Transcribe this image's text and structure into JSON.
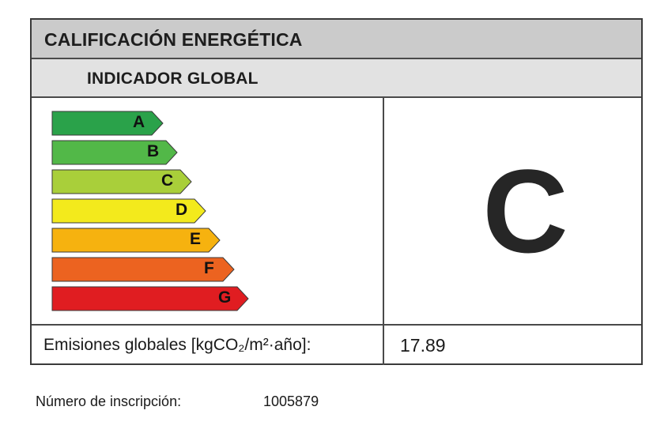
{
  "header": {
    "title": "CALIFICACIÓN ENERGÉTICA",
    "subtitle": "INDICADOR GLOBAL"
  },
  "scale": [
    {
      "letter": "A",
      "color": "#2aa24a"
    },
    {
      "letter": "B",
      "color": "#52b848"
    },
    {
      "letter": "C",
      "color": "#a9cf3a"
    },
    {
      "letter": "D",
      "color": "#f3ea1c"
    },
    {
      "letter": "E",
      "color": "#f6b20f"
    },
    {
      "letter": "F",
      "color": "#ec6320"
    },
    {
      "letter": "G",
      "color": "#e01d21"
    }
  ],
  "rating": {
    "letter": "C"
  },
  "emissions": {
    "label": "Emisiones globales  [kgCO₂/m²·año]:",
    "value": "17.89"
  },
  "registration": {
    "label": "Número de inscripción:",
    "value": "1005879"
  }
}
